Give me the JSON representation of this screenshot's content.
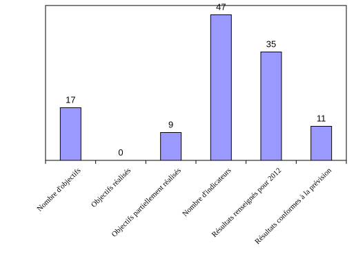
{
  "chart_data": {
    "type": "bar",
    "categories": [
      "Nombre d'objectifs",
      "Objectifs réalisés",
      "Objectifs partiellement réalisés",
      "Nombre d'indicateurs",
      "Résultats renseignés pour 2012",
      "Résultats conformes à la prévision"
    ],
    "values": [
      17,
      0,
      9,
      47,
      35,
      11
    ],
    "data_labels": [
      "17",
      "0",
      "9",
      "47",
      "35",
      "11"
    ],
    "ylim": [
      0,
      50
    ],
    "grid": false,
    "legend": "none",
    "bar_color": "#9999ff",
    "bar_border_color": "#000000"
  }
}
